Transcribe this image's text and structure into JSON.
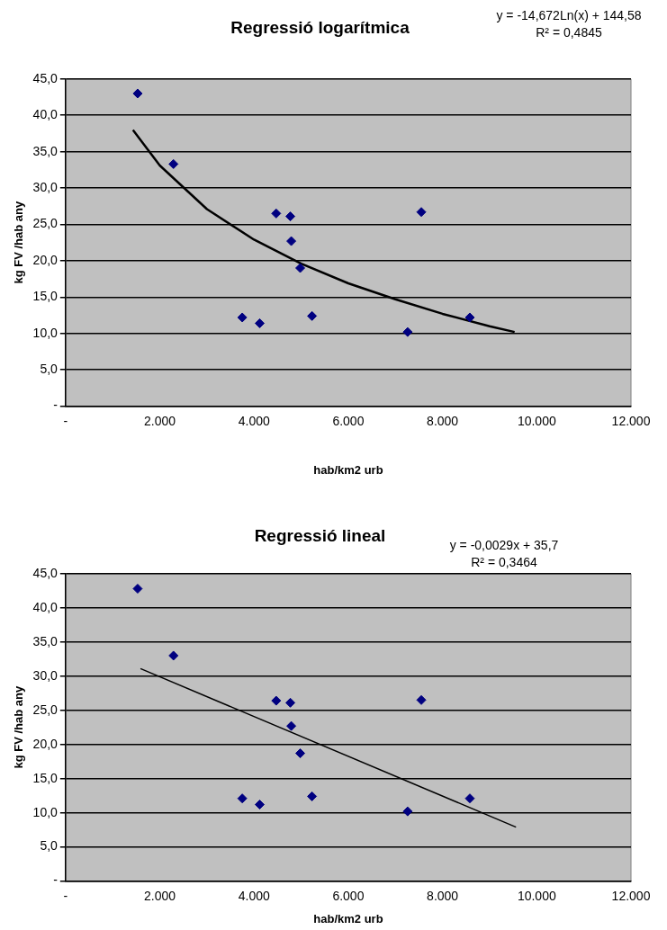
{
  "chart_data": [
    {
      "type": "scatter",
      "title": "Regressió logarítmica",
      "annotations": [
        "y = -14,672Ln(x) + 144,58",
        "R² = 0,4845"
      ],
      "xlabel": "hab/km2 urb",
      "ylabel": "kg FV /hab any",
      "marker": "diamond",
      "legend": false,
      "grid": "y",
      "xlim": [
        0,
        12000
      ],
      "xticks": [
        {
          "value": 0,
          "label": "-"
        },
        {
          "value": 2000,
          "label": "2.000"
        },
        {
          "value": 4000,
          "label": "4.000"
        },
        {
          "value": 6000,
          "label": "6.000"
        },
        {
          "value": 8000,
          "label": "8.000"
        },
        {
          "value": 10000,
          "label": "10.000"
        },
        {
          "value": 12000,
          "label": "12.000"
        }
      ],
      "ylim": [
        0,
        45
      ],
      "yticks": [
        {
          "value": 0,
          "label": "-"
        },
        {
          "value": 5,
          "label": "5,0"
        },
        {
          "value": 10,
          "label": "10,0"
        },
        {
          "value": 15,
          "label": "15,0"
        },
        {
          "value": 20,
          "label": "20,0"
        },
        {
          "value": 25,
          "label": "25,0"
        },
        {
          "value": 30,
          "label": "30,0"
        },
        {
          "value": 35,
          "label": "35,0"
        },
        {
          "value": 40,
          "label": "40,0"
        },
        {
          "value": 45,
          "label": "45,0"
        }
      ],
      "series": [
        {
          "color": "#000080",
          "x": [
            1530,
            2290,
            3750,
            4120,
            4470,
            4770,
            4790,
            4980,
            5230,
            7260,
            7550,
            8580
          ],
          "values": [
            43.0,
            33.3,
            12.2,
            11.4,
            26.5,
            26.1,
            22.7,
            19.0,
            12.4,
            10.2,
            26.7,
            12.2
          ]
        },
        {
          "type": "line",
          "color": "#000000",
          "marker": "none",
          "x": [
            1430,
            2000,
            3000,
            4000,
            5000,
            6000,
            7000,
            8000,
            9000,
            9530
          ],
          "values": [
            38.0,
            33.1,
            27.1,
            22.9,
            19.6,
            16.9,
            14.7,
            12.7,
            11.0,
            10.2
          ]
        }
      ]
    },
    {
      "type": "scatter",
      "title": "Regressió lineal",
      "annotations": [
        "y = -0,0029x + 35,7",
        "R² = 0,3464"
      ],
      "xlabel": "hab/km2 urb",
      "ylabel": "kg FV /hab any",
      "marker": "diamond",
      "legend": false,
      "grid": "y",
      "xlim": [
        0,
        12000
      ],
      "xticks": [
        {
          "value": 0,
          "label": "-"
        },
        {
          "value": 2000,
          "label": "2.000"
        },
        {
          "value": 4000,
          "label": "4.000"
        },
        {
          "value": 6000,
          "label": "6.000"
        },
        {
          "value": 8000,
          "label": "8.000"
        },
        {
          "value": 10000,
          "label": "10.000"
        },
        {
          "value": 12000,
          "label": "12.000"
        }
      ],
      "ylim": [
        0,
        45
      ],
      "yticks": [
        {
          "value": 0,
          "label": "-"
        },
        {
          "value": 5,
          "label": "5,0"
        },
        {
          "value": 10,
          "label": "10,0"
        },
        {
          "value": 15,
          "label": "15,0"
        },
        {
          "value": 20,
          "label": "20,0"
        },
        {
          "value": 25,
          "label": "25,0"
        },
        {
          "value": 30,
          "label": "30,0"
        },
        {
          "value": 35,
          "label": "35,0"
        },
        {
          "value": 40,
          "label": "40,0"
        },
        {
          "value": 45,
          "label": "45,0"
        }
      ],
      "series": [
        {
          "color": "#000080",
          "x": [
            1530,
            2290,
            3750,
            4120,
            4470,
            4770,
            4790,
            4980,
            5230,
            7260,
            7550,
            8580
          ],
          "values": [
            42.8,
            33.0,
            12.1,
            11.2,
            26.4,
            26.1,
            22.7,
            18.7,
            12.4,
            10.2,
            26.5,
            12.1
          ]
        },
        {
          "type": "line",
          "color": "#000000",
          "marker": "none",
          "x": [
            1590,
            9560
          ],
          "values": [
            31.1,
            7.9
          ]
        }
      ]
    }
  ]
}
